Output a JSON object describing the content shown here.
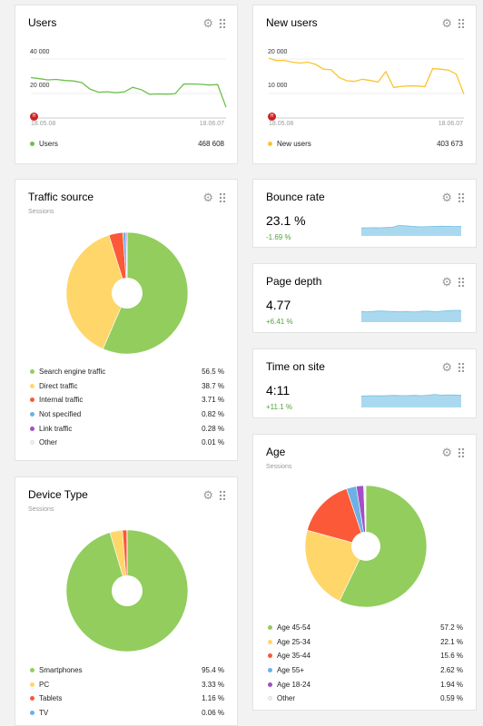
{
  "colors": {
    "green": "#92cd5e",
    "yellow": "#ffd66a",
    "red": "#fb5938",
    "blue": "#6db0e3",
    "purple": "#a34fc5",
    "white": "#f2f2f2",
    "users_line": "#6cc04a",
    "new_users_line": "#fbc42f",
    "spark_fill": "#aad9ef",
    "spark_line": "#70bfe3"
  },
  "users": {
    "title": "Users",
    "y_ticks": [
      "40 000",
      "20 000"
    ],
    "date_start": "18.05.08",
    "date_end": "18.06.07",
    "marker": "H",
    "legend_label": "Users",
    "total": "468 608",
    "chart_data": {
      "type": "line",
      "x_range": [
        "18.05.08",
        "18.06.07"
      ],
      "ylim": [
        0,
        50000
      ],
      "values": [
        26500,
        25800,
        25000,
        25300,
        24600,
        24300,
        23200,
        18800,
        16900,
        17200,
        16600,
        17100,
        20100,
        18600,
        15500,
        15800,
        15600,
        15900,
        22200,
        22300,
        22100,
        21600,
        21900,
        7000
      ]
    }
  },
  "new_users": {
    "title": "New users",
    "y_ticks": [
      "20 000",
      "10 000"
    ],
    "date_start": "18.05.08",
    "date_end": "18.06.07",
    "marker": "H",
    "legend_label": "New users",
    "total": "403 673",
    "chart_data": {
      "type": "line",
      "x_range": [
        "18.05.08",
        "18.06.07"
      ],
      "ylim": [
        0,
        25000
      ],
      "values": [
        19600,
        18800,
        18900,
        18300,
        18000,
        18300,
        17600,
        16000,
        15800,
        13300,
        12200,
        12000,
        12700,
        12300,
        11800,
        15200,
        10000,
        10400,
        10500,
        10500,
        10300,
        16200,
        16000,
        15700,
        14400,
        7800
      ]
    }
  },
  "traffic": {
    "title": "Traffic source",
    "subtitle": "Sessions",
    "chart_data": {
      "type": "pie",
      "labels": [
        "Search engine traffic",
        "Direct traffic",
        "Internal traffic",
        "Not specified",
        "Link traffic",
        "Other"
      ],
      "values": [
        56.5,
        38.7,
        3.71,
        0.82,
        0.28,
        0.01
      ],
      "display": [
        "56.5 %",
        "38.7 %",
        "3.71 %",
        "0.82 %",
        "0.28 %",
        "0.01 %"
      ],
      "colors": [
        "#92cd5e",
        "#ffd66a",
        "#fb5938",
        "#6db0e3",
        "#a34fc5",
        "#f2f2f2"
      ]
    }
  },
  "device": {
    "title": "Device Type",
    "subtitle": "Sessions",
    "chart_data": {
      "type": "pie",
      "labels": [
        "Smartphones",
        "PC",
        "Tablets",
        "TV"
      ],
      "values": [
        95.4,
        3.33,
        1.16,
        0.06
      ],
      "display": [
        "95.4 %",
        "3.33 %",
        "1.16 %",
        "0.06 %"
      ],
      "colors": [
        "#92cd5e",
        "#ffd66a",
        "#fb5938",
        "#6db0e3"
      ]
    }
  },
  "age": {
    "title": "Age",
    "subtitle": "Sessions",
    "chart_data": {
      "type": "pie",
      "labels": [
        "Age 45-54",
        "Age 25-34",
        "Age 35-44",
        "Age 55+",
        "Age 18-24",
        "Other"
      ],
      "values": [
        57.2,
        22.1,
        15.6,
        2.62,
        1.94,
        0.59
      ],
      "display": [
        "57.2 %",
        "22.1 %",
        "15.6 %",
        "2.62 %",
        "1.94 %",
        "0.59 %"
      ],
      "colors": [
        "#92cd5e",
        "#ffd66a",
        "#fb5938",
        "#6db0e3",
        "#a34fc5",
        "#f2f2f2"
      ]
    }
  },
  "bounce": {
    "title": "Bounce rate",
    "value": "23.1 %",
    "delta": "-1.69 %",
    "spark": [
      0.55,
      0.56,
      0.57,
      0.56,
      0.58,
      0.6,
      0.72,
      0.7,
      0.66,
      0.64,
      0.63,
      0.65,
      0.66,
      0.67,
      0.66,
      0.65,
      0.66
    ]
  },
  "depth": {
    "title": "Page depth",
    "value": "4.77",
    "delta": "+6.41 %",
    "spark": [
      0.66,
      0.63,
      0.65,
      0.69,
      0.68,
      0.66,
      0.65,
      0.64,
      0.66,
      0.63,
      0.64,
      0.67,
      0.68,
      0.65,
      0.66,
      0.69,
      0.71,
      0.72,
      0.72
    ]
  },
  "time": {
    "title": "Time on site",
    "value": "4:11",
    "delta": "+11.1 %",
    "spark": [
      0.7,
      0.71,
      0.72,
      0.71,
      0.73,
      0.74,
      0.72,
      0.73,
      0.74,
      0.72,
      0.75,
      0.8,
      0.75,
      0.77,
      0.76,
      0.75
    ]
  }
}
